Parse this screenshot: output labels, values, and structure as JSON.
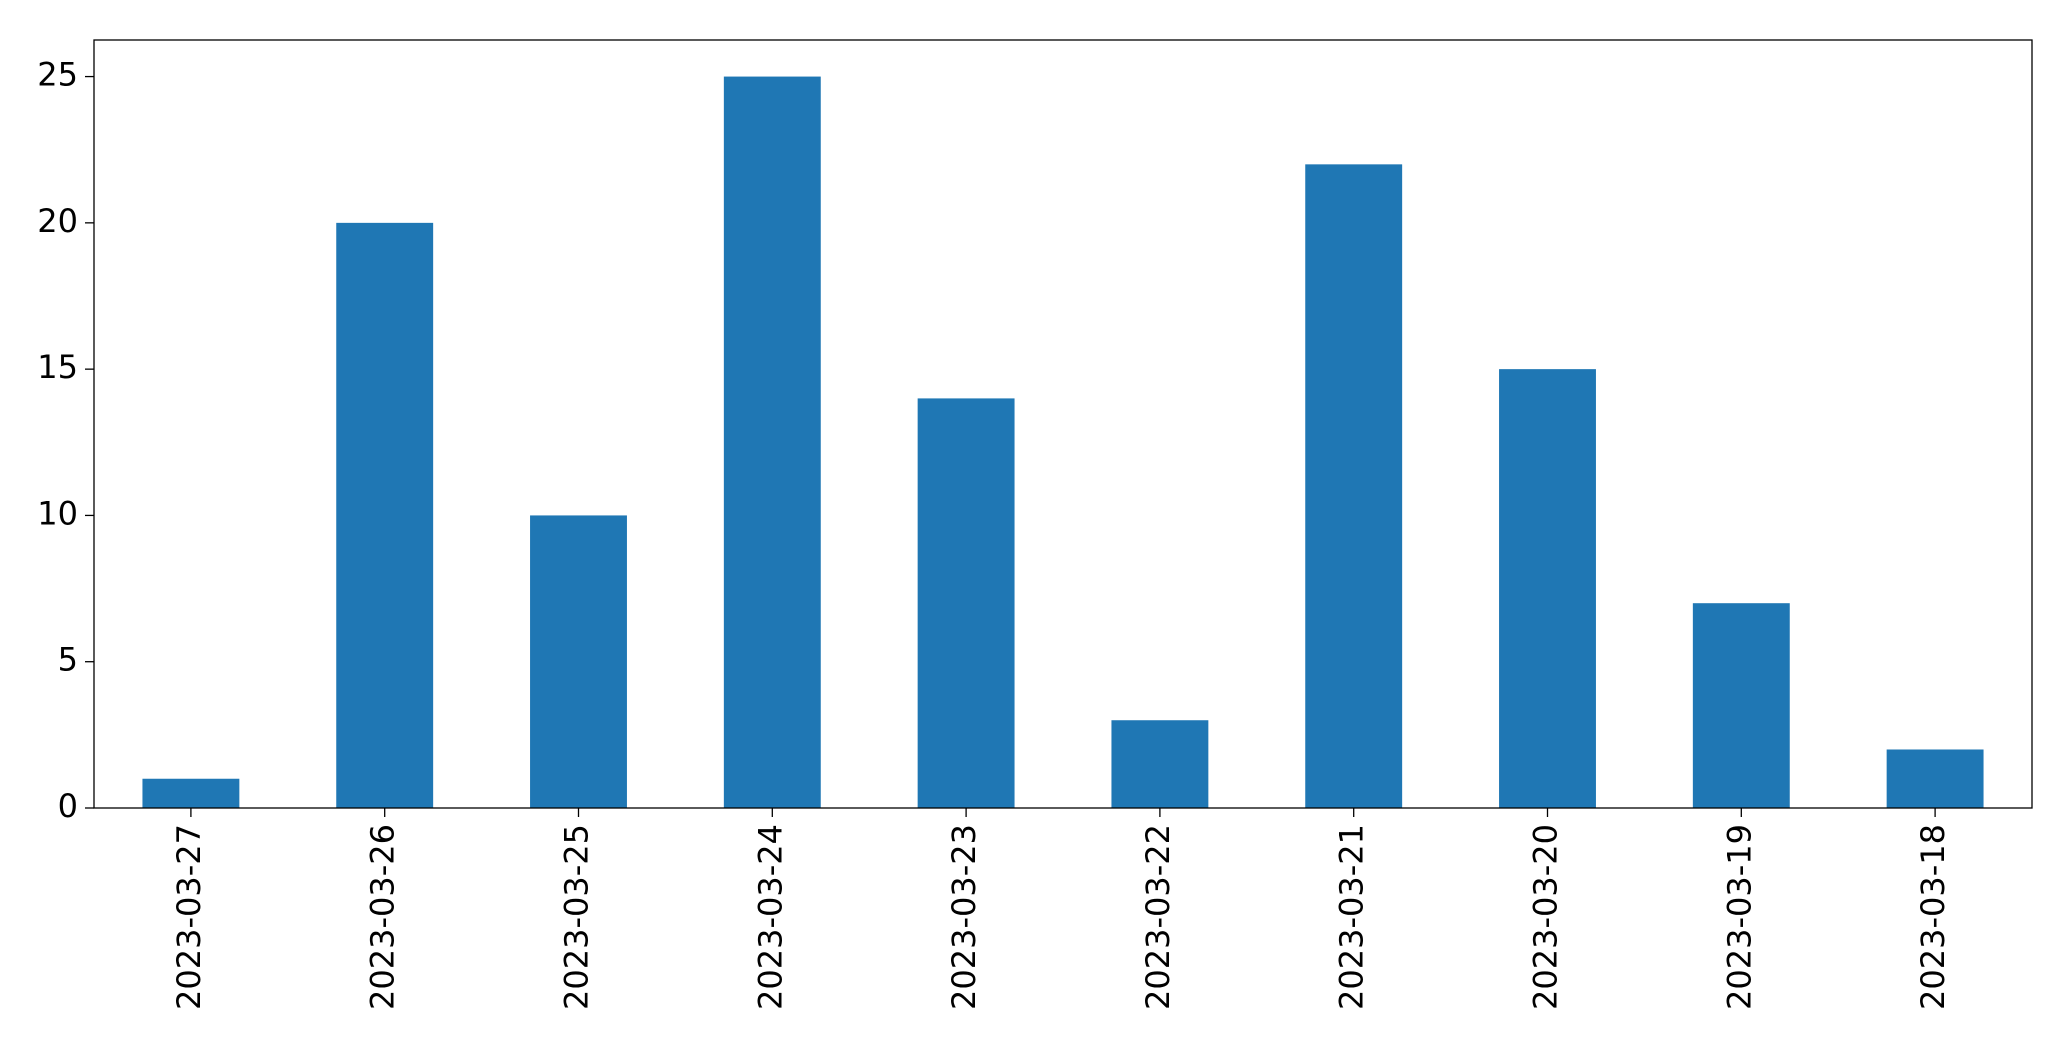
{
  "chart_data": {
    "type": "bar",
    "categories": [
      "2023-03-27",
      "2023-03-26",
      "2023-03-25",
      "2023-03-24",
      "2023-03-23",
      "2023-03-22",
      "2023-03-21",
      "2023-03-20",
      "2023-03-19",
      "2023-03-18"
    ],
    "values": [
      1,
      20,
      10,
      25,
      14,
      3,
      22,
      15,
      7,
      2
    ],
    "color": "#1f77b4",
    "ylim": [
      0,
      26.25
    ],
    "yticks": [
      0,
      5,
      10,
      15,
      20,
      25
    ],
    "grid": false
  }
}
